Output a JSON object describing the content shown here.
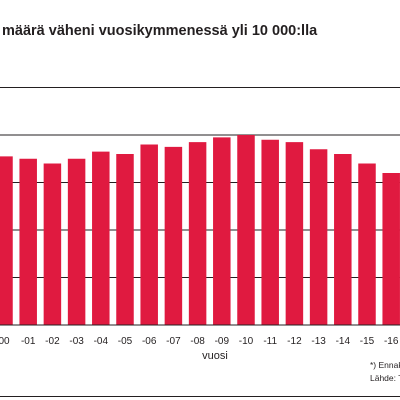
{
  "chart_data": {
    "type": "bar",
    "title": "määrä väheni vuosikymmenessä yli 10 000:lla",
    "xlabel": "vuosi",
    "ylabel": "",
    "categories": [
      "00",
      "-01",
      "-02",
      "-03",
      "-04",
      "-05",
      "-06",
      "-07",
      "-08",
      "-09",
      "-10",
      "-11",
      "-12",
      "-13",
      "-14",
      "-15",
      "-16"
    ],
    "values": [
      71,
      70,
      68,
      70,
      73,
      72,
      76,
      75,
      77,
      79,
      80,
      78,
      77,
      74,
      72,
      68,
      64
    ],
    "ylim": [
      0,
      120
    ],
    "gridlines": [
      20,
      40,
      60,
      80,
      100
    ],
    "grid": true,
    "bar_color": "#e01a40",
    "footnote": "*) Ennak",
    "source": "Lähde: T"
  }
}
